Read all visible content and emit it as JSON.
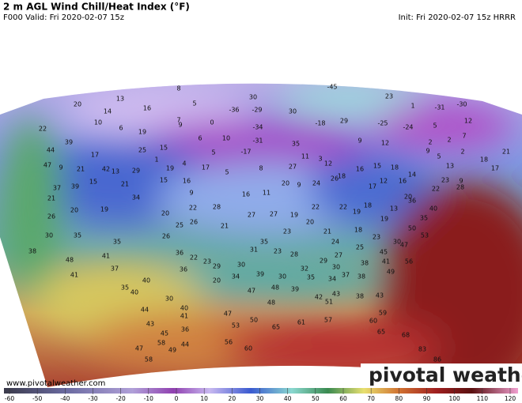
{
  "header": {
    "title": "2 m AGL Wind Chill/Heat Index (°F)",
    "valid": "F000 Valid: Fri 2020-02-07 15z",
    "init": "Init: Fri 2020-02-07 15z HRRR"
  },
  "map": {
    "values": [
      8,
      -45,
      13,
      5,
      30,
      23,
      20,
      14,
      16,
      -36,
      -29,
      30,
      1,
      -31,
      -30,
      7,
      0,
      -34,
      -18,
      29,
      -25,
      12,
      -24,
      5,
      22,
      10,
      6,
      19,
      9,
      5,
      6,
      10,
      -31,
      9,
      12,
      2,
      2,
      7,
      2,
      5,
      9,
      18,
      21,
      17,
      13,
      39,
      44,
      25,
      15,
      17,
      -17,
      35,
      11,
      27,
      3,
      12,
      18,
      16,
      15,
      18,
      14,
      9,
      23,
      47,
      9,
      42,
      21,
      39,
      15,
      29,
      13,
      21,
      1,
      19,
      17,
      4,
      5,
      15,
      16,
      9,
      16,
      8,
      11,
      20,
      9,
      24,
      26,
      17,
      12,
      20,
      22,
      28,
      16,
      21,
      37,
      34,
      20,
      19,
      26,
      28,
      22,
      20,
      26,
      27,
      27,
      19,
      22,
      20,
      22,
      19,
      18,
      13,
      19,
      40,
      35,
      36,
      50,
      53,
      30,
      25,
      21,
      35,
      26,
      23,
      21,
      18,
      24,
      23,
      30,
      47,
      38,
      35,
      36,
      22,
      23,
      31,
      35,
      23,
      28,
      29,
      27,
      25,
      45,
      41,
      56,
      48,
      41,
      36,
      29,
      30,
      32,
      30,
      38,
      41,
      37,
      20,
      34,
      39,
      30,
      35,
      34,
      37,
      38,
      49,
      40,
      35,
      40,
      30,
      47,
      48,
      39,
      42,
      43,
      38,
      43,
      48,
      51,
      40,
      44,
      41,
      47,
      53,
      50,
      65,
      61,
      57,
      59,
      43,
      45,
      36,
      60,
      65,
      58,
      44,
      56,
      60,
      47,
      49,
      68,
      58,
      83,
      86
    ]
  },
  "colorbar": {
    "ticks": [
      -60,
      -50,
      -40,
      -30,
      -20,
      -10,
      0,
      10,
      20,
      30,
      40,
      50,
      60,
      70,
      80,
      90,
      100,
      110,
      120
    ]
  },
  "footer": {
    "url": "www.pivotalweather.com",
    "brand": "pivotal weather"
  }
}
